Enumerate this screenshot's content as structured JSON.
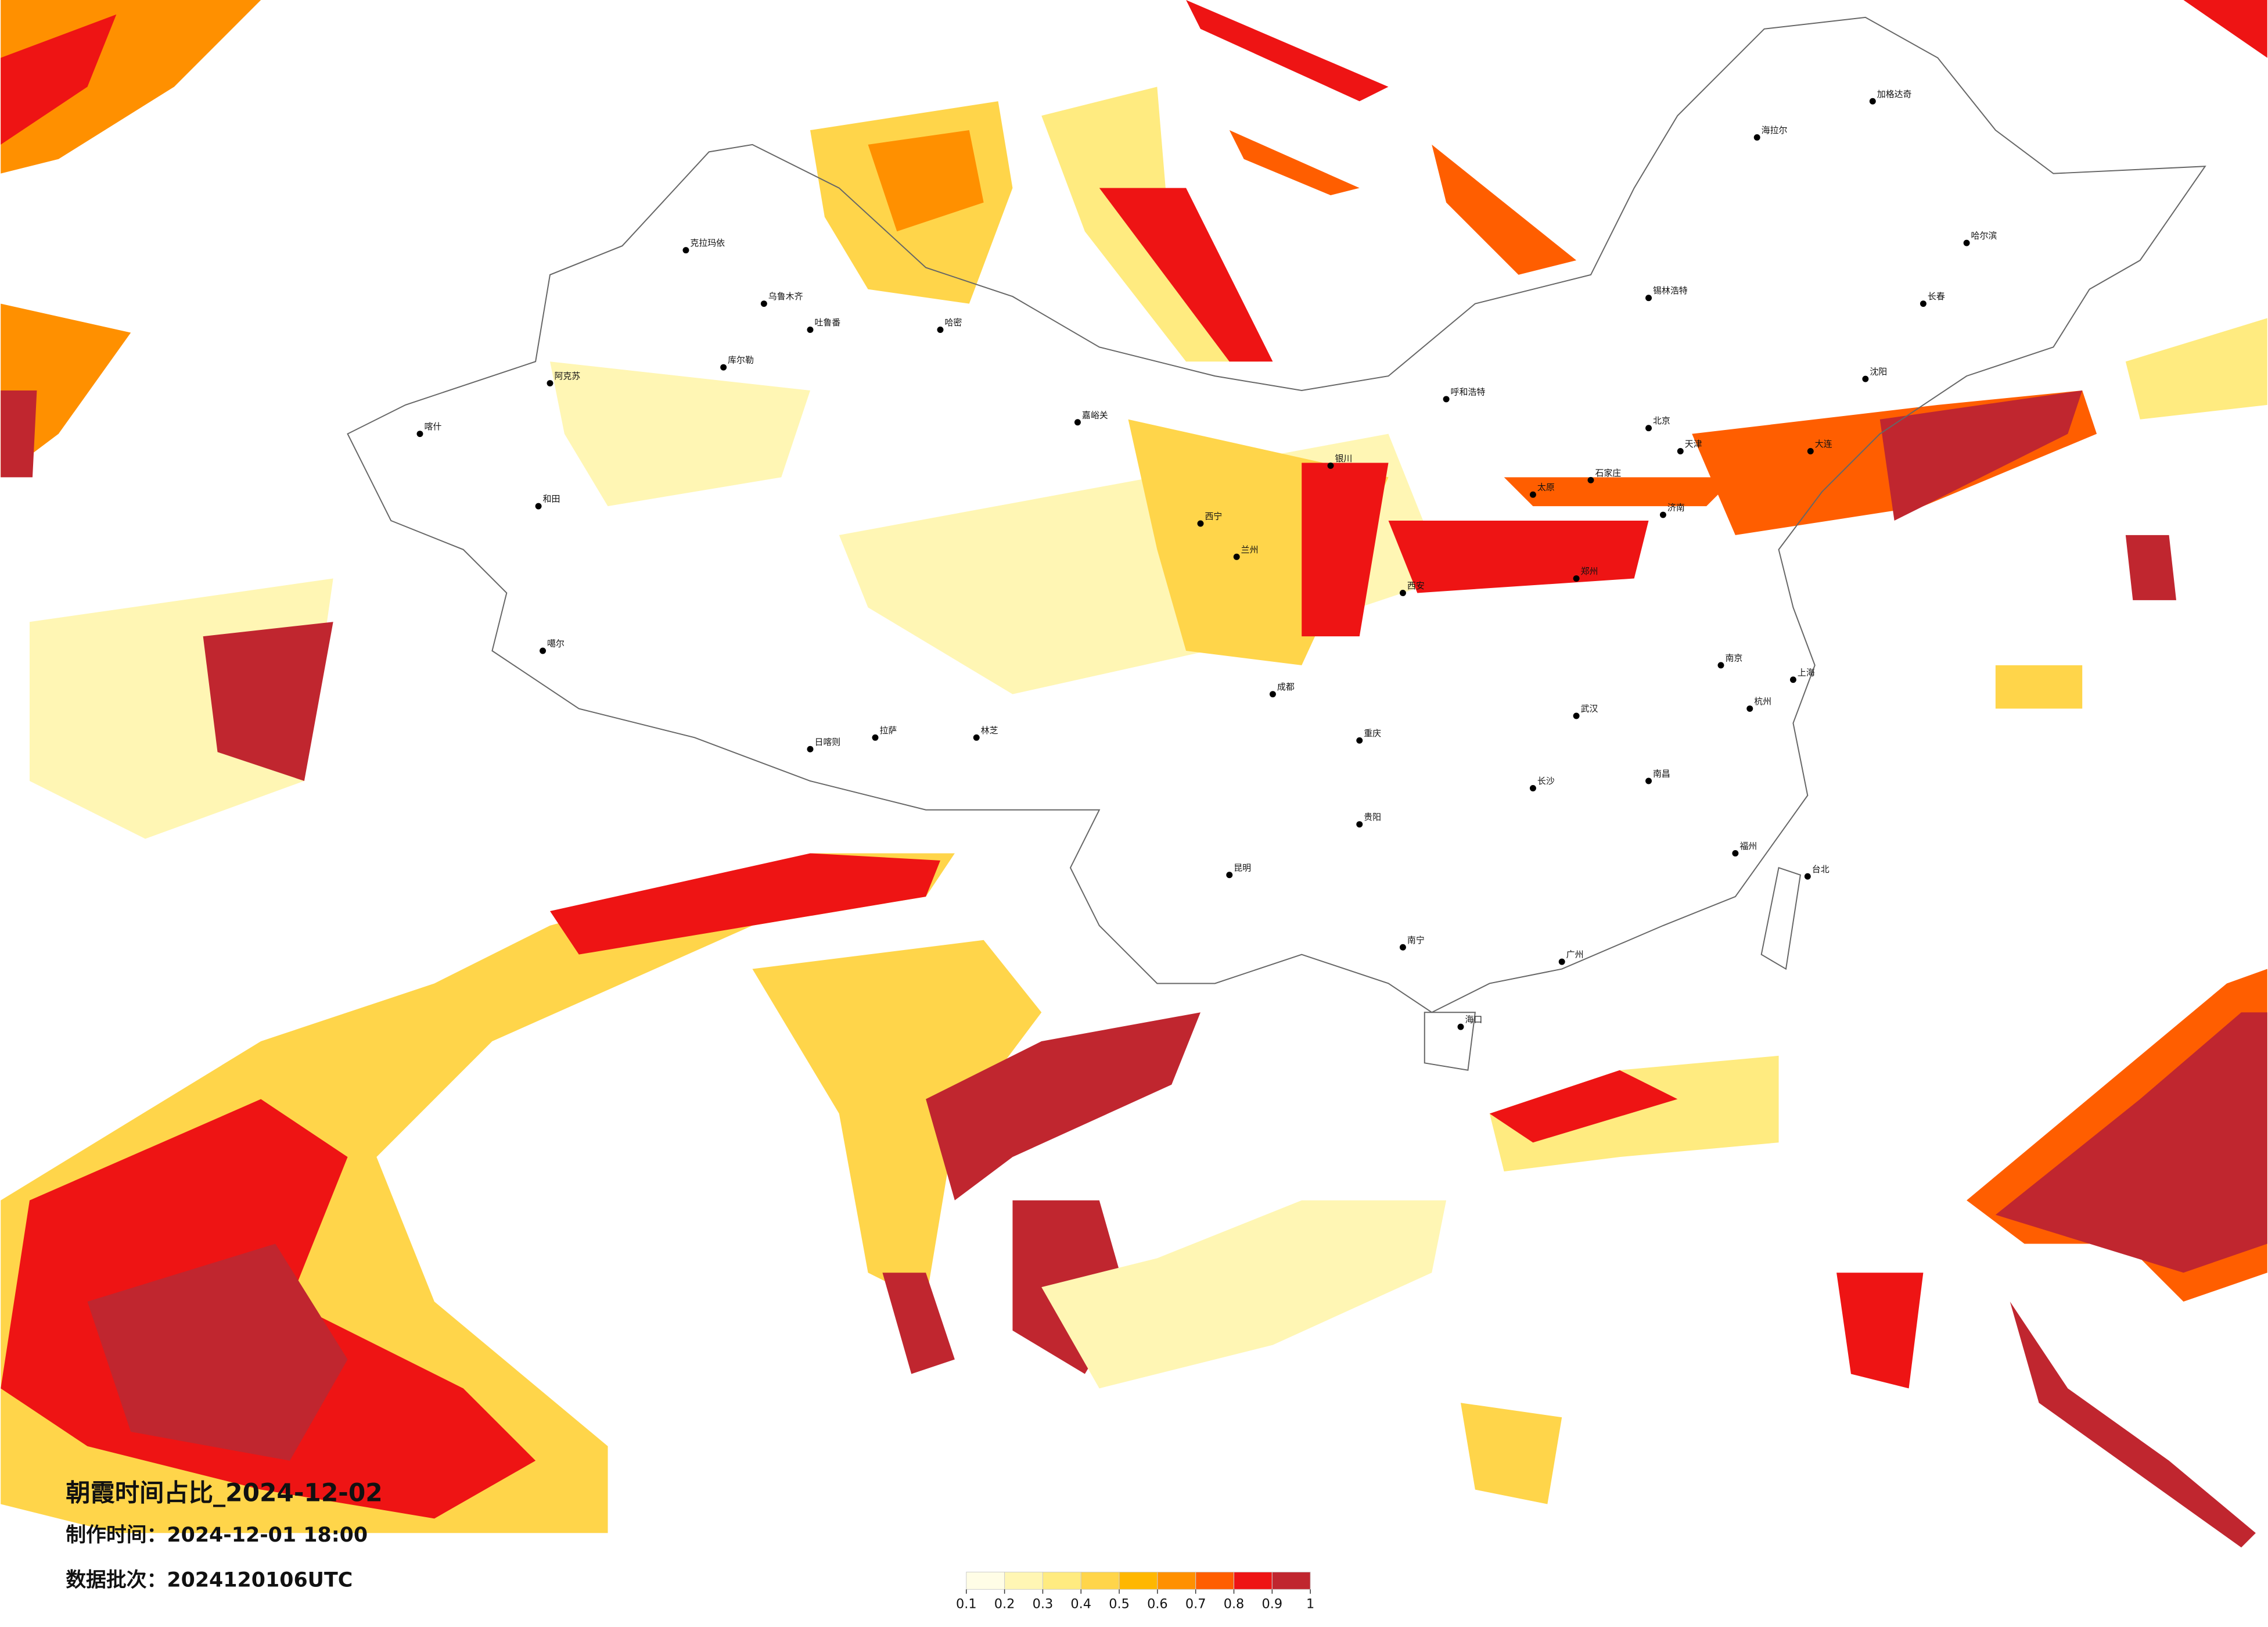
{
  "map": {
    "title": "朝霞时间占比_2024-12-02",
    "made_time": "制作时间：2024-12-01 18:00",
    "batch": "数据批次：2024120106UTC"
  },
  "legend": {
    "ticks": [
      0.1,
      0.2,
      0.3,
      0.4,
      0.5,
      0.6,
      0.7,
      0.8,
      0.9,
      1
    ],
    "colors": [
      "#fffde6",
      "#fff6b4",
      "#ffeb80",
      "#ffd54a",
      "#ffb700",
      "#ff9000",
      "#ff5e00",
      "#ee1414",
      "#c0262f"
    ]
  },
  "cities": [
    "克拉玛依",
    "乌鲁木齐",
    "吐鲁番",
    "哈密",
    "库尔勒",
    "阿克苏",
    "喀什",
    "和田",
    "噶尔",
    "日喀则",
    "拉萨",
    "林芝",
    "嘉峪关",
    "西宁",
    "兰州",
    "银川",
    "呼和浩特",
    "北京",
    "天津",
    "石家庄",
    "太原",
    "济南",
    "郑州",
    "西安",
    "武汉",
    "南京",
    "上海",
    "杭州",
    "长沙",
    "南昌",
    "福州",
    "广州",
    "南宁",
    "海口",
    "昆明",
    "贵阳",
    "成都",
    "重庆",
    "哈尔滨",
    "长春",
    "沈阳",
    "大连",
    "台北",
    "海拉尔",
    "加格达奇",
    "锡林浩特"
  ]
}
